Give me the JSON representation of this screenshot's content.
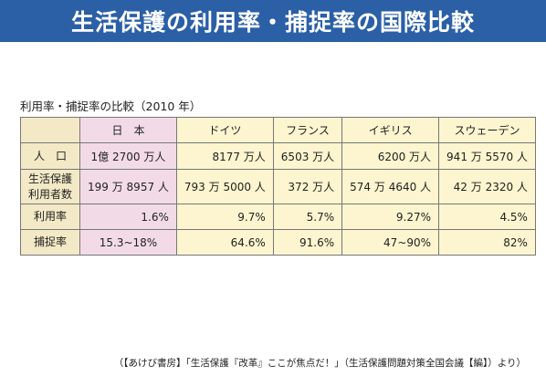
{
  "title": "生活保護の利用率・捕捉率の国際比較",
  "subtitle": "利用率・捕捉率の比較（2010 年）",
  "table": {
    "columns": [
      "日　本",
      "ドイツ",
      "フランス",
      "イギリス",
      "スウェーデン"
    ],
    "rows": [
      {
        "label": "人　口",
        "cells": [
          "1億 2700 万人",
          "8177 万人",
          "6503 万人",
          "6200 万人",
          "941 万 5570 人"
        ]
      },
      {
        "label_line1": "生活保護",
        "label_line2": "利用者数",
        "cells": [
          "199 万 8957 人",
          "793 万 5000 人",
          "372 万人",
          "574 万 4640 人",
          "42 万 2320 人"
        ]
      },
      {
        "label": "利用率",
        "cells": [
          "1.6%",
          "9.7%",
          "5.7%",
          "9.27%",
          "4.5%"
        ]
      },
      {
        "label": "捕捉率",
        "cells": [
          "15.3~18%",
          "64.6%",
          "91.6%",
          "47~90%",
          "82%"
        ]
      }
    ]
  },
  "source": "（【あけび書房】「生活保護『改革』ここが焦点だ！」（生活保護問題対策全国会議【編】）より）",
  "colors": {
    "title_bg": "#2b5fa6",
    "label_bg": "#f3e9c6",
    "japan_bg": "#f2dbe7",
    "others_bg": "#fcf5cf"
  }
}
